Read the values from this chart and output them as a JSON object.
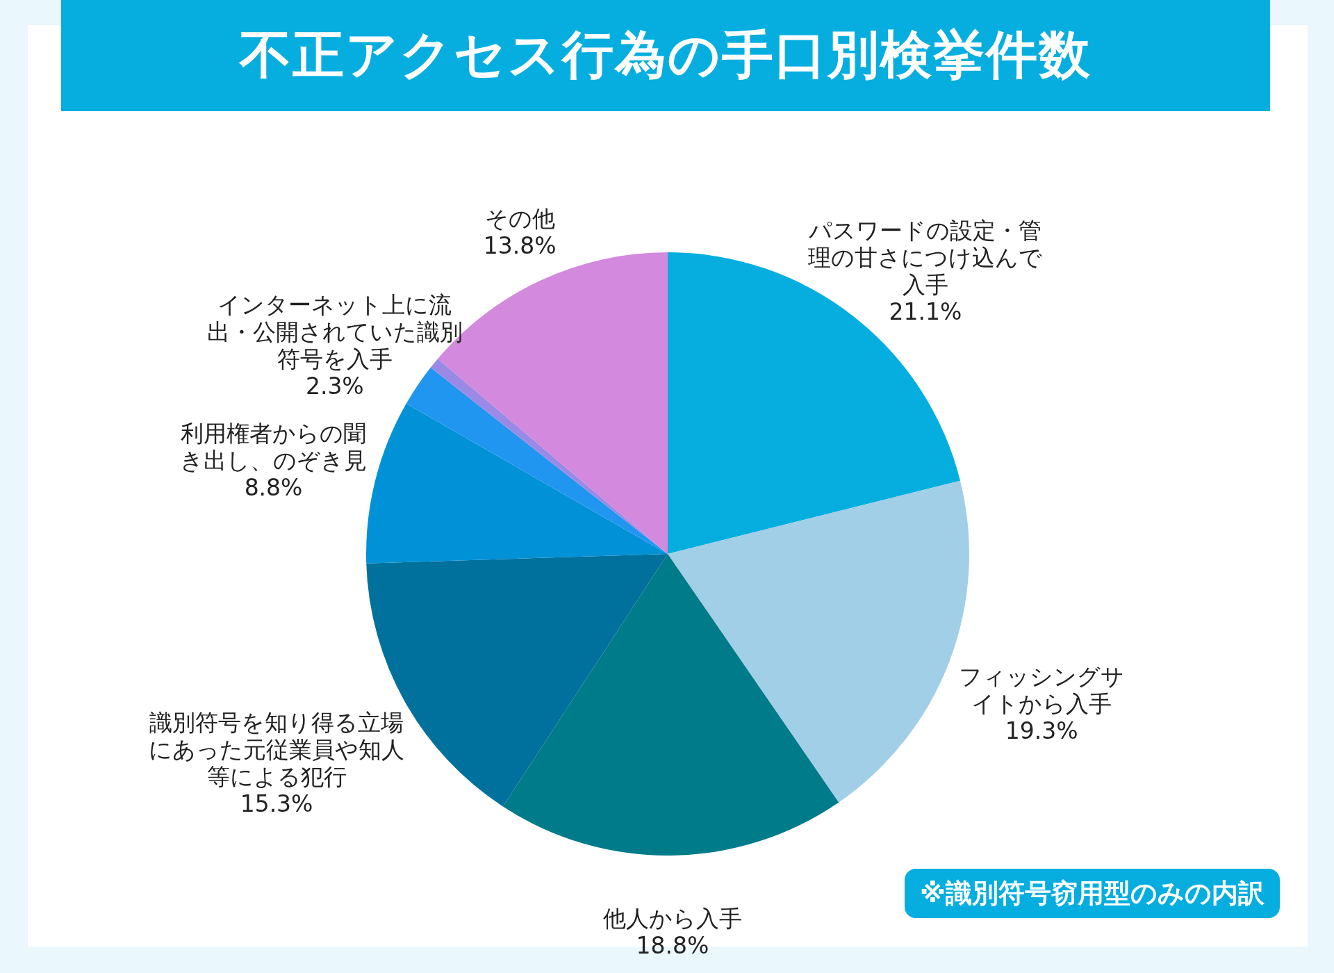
{
  "chart_data": {
    "type": "pie",
    "title": "不正アクセス行為の手口別検挙件数",
    "categories": [
      "パスワードの設定・管理の甘さにつけ込んで入手",
      "フィッシングサイトから入手",
      "他人から入手",
      "識別符号を知り得る立場にあった元従業員や知人等による犯行",
      "利用権者からの聞き出し、のぞき見",
      "インターネット上に流出・公開されていた識別符号を入手",
      null,
      "その他"
    ],
    "values": [
      21.1,
      19.3,
      18.8,
      15.3,
      8.8,
      2.3,
      0.6,
      13.8
    ],
    "colors": [
      "#06aee0",
      "#a2cfe8",
      "#007b8a",
      "#00709c",
      "#0091d6",
      "#2196f0",
      "#9a8ae6",
      "#d389de"
    ],
    "value_labels": [
      "21.1%",
      "19.3%",
      "18.8%",
      "15.3%",
      "8.8%",
      "2.3%",
      null,
      "13.8%"
    ],
    "annotations": [
      "※識別符号窃用型のみの内訳"
    ]
  }
}
